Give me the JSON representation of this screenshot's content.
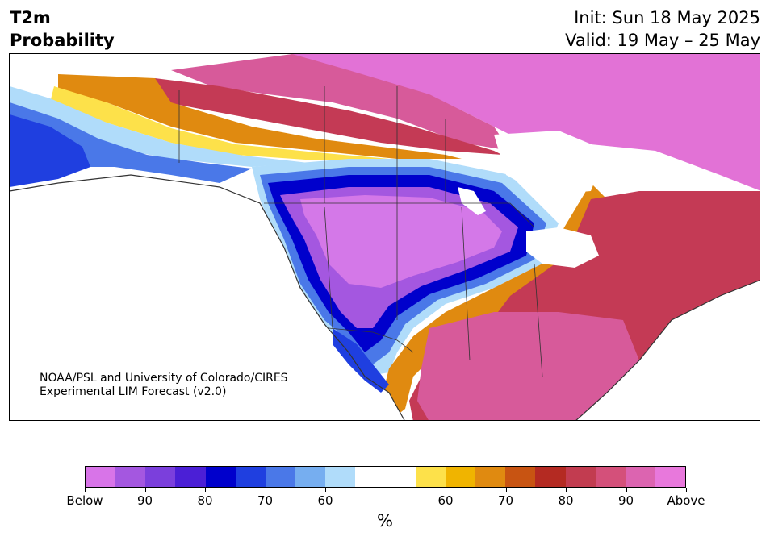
{
  "title": {
    "left_line1": "T2m",
    "left_line2": "Probability",
    "right_line1": "Init: Sun 18 May 2025",
    "right_line2": "Valid: 19 May – 25 May"
  },
  "credit": {
    "line1": "NOAA/PSL and University of Colorado/CIRES",
    "line2": "Experimental LIM Forecast (v2.0)"
  },
  "colorbar": {
    "colors": [
      "#d874e8",
      "#a457e0",
      "#7b3fdc",
      "#4b1fd6",
      "#0000cc",
      "#1f3fe0",
      "#4a78e8",
      "#76aef0",
      "#b0dcfa",
      "#ffffff",
      "#ffffff",
      "#fde14a",
      "#f0b400",
      "#e08a10",
      "#c85412",
      "#b42a22",
      "#c23c50",
      "#d4507a",
      "#dc64b0",
      "#e878dc"
    ],
    "labels": [
      "Below",
      "90",
      "80",
      "70",
      "60",
      "60",
      "70",
      "80",
      "90",
      "Above"
    ],
    "unit": "%"
  },
  "map": {
    "colors": {
      "above_extreme": "#e272d6",
      "above_high": "#d75a9a",
      "above_mid": "#c43a55",
      "above_80": "#b42a22",
      "orange": "#e08a10",
      "yellow": "#fde14a",
      "below_extreme": "#d478e8",
      "below_high": "#a457e0",
      "blue_deep": "#0000cc",
      "blue_mid": "#4a78e8",
      "blue_light": "#b0dcfa"
    }
  }
}
